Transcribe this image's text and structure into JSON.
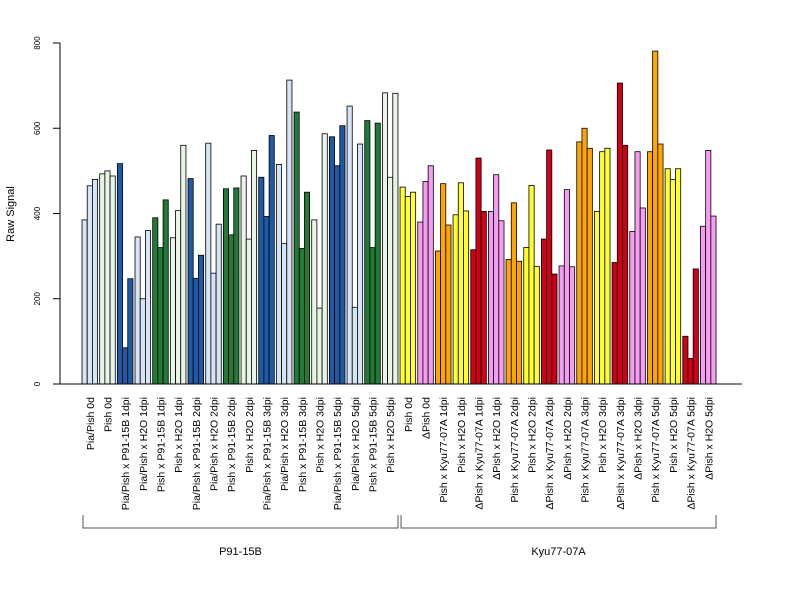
{
  "chart_data": {
    "type": "bar",
    "ylabel": "Raw Signal",
    "ylim": [
      0,
      800
    ],
    "yticks": [
      0,
      200,
      400,
      600,
      800
    ],
    "grid": false,
    "categories": [
      "Pia/Pish 0d",
      "Pish 0d",
      "Pia/Pish x P91-15B 1dpi",
      "Pia/Pish x H2O 1dpi",
      "Pish x P91-15B 1dpi",
      "Pish x H2O 1dpi",
      "Pia/Pish x P91-15B 2dpi",
      "Pia/Pish x H2O 2dpi",
      "Pish x P91-15B 2dpi",
      "Pish x H2O 2dpi",
      "Pia/Pish x P91-15B 3dpi",
      "Pia/Pish x H2O 3dpi",
      "Pish x P91-15B 3dpi",
      "Pish x H2O 3dpi",
      "Pia/Pish x P91-15B 5dpi",
      "Pia/Pish x H2O 5dpi",
      "Pish x P91-15B 5dpi",
      "Pish x H2O 5dpi",
      "Pish 0d",
      "ΔPish 0d",
      "Pish x Kyu77-07A 1dpi",
      "Pish x H2O 1dpi",
      "ΔPish x Kyu77-07A 1dpi",
      "ΔPish x H2O 1dpi",
      "Pish x Kyu77-07A 2dpi",
      "Pish x H2O 2dpi",
      "ΔPish x Kyu77-07A 2dpi",
      "ΔPish x H2O 2dpi",
      "Pish x Kyu77-07A 3dpi",
      "Pish x H2O 3dpi",
      "ΔPish x Kyu77-07A 3dpi",
      "ΔPish x H2O 3dpi",
      "Pish x Kyu77-07A 5dpi",
      "Pish x H2O 5dpi",
      "ΔPish x Kyu77-07A 5dpi",
      "ΔPish x H2O 5dpi"
    ],
    "groups": [
      {
        "colors": [
          "#d6e4f5"
        ],
        "values": [
          385,
          465,
          480
        ]
      },
      {
        "colors": [
          "#e8f5e6"
        ],
        "values": [
          493,
          500,
          488
        ]
      },
      {
        "colors": [
          "#1f5aa6"
        ],
        "values": [
          517,
          85,
          247
        ]
      },
      {
        "colors": [
          "#d6e4f5"
        ],
        "values": [
          345,
          200,
          360
        ]
      },
      {
        "colors": [
          "#237a37"
        ],
        "values": [
          390,
          320,
          432
        ]
      },
      {
        "colors": [
          "#e8f5e6"
        ],
        "values": [
          343,
          407,
          560
        ]
      },
      {
        "colors": [
          "#1f5aa6"
        ],
        "values": [
          482,
          248,
          302
        ]
      },
      {
        "colors": [
          "#d6e4f5"
        ],
        "values": [
          565,
          260,
          375
        ]
      },
      {
        "colors": [
          "#237a37"
        ],
        "values": [
          458,
          350,
          460
        ]
      },
      {
        "colors": [
          "#e8f5e6"
        ],
        "values": [
          488,
          340,
          548
        ]
      },
      {
        "colors": [
          "#1f5aa6"
        ],
        "values": [
          485,
          393,
          583
        ]
      },
      {
        "colors": [
          "#d6e4f5"
        ],
        "values": [
          515,
          330,
          713
        ]
      },
      {
        "colors": [
          "#237a37"
        ],
        "values": [
          638,
          318,
          450
        ]
      },
      {
        "colors": [
          "#e8f5e6"
        ],
        "values": [
          385,
          178,
          587
        ]
      },
      {
        "colors": [
          "#1f5aa6"
        ],
        "values": [
          580,
          512,
          606
        ]
      },
      {
        "colors": [
          "#d6e4f5"
        ],
        "values": [
          652,
          180,
          563
        ]
      },
      {
        "colors": [
          "#237a37"
        ],
        "values": [
          618,
          320,
          612
        ]
      },
      {
        "colors": [
          "#e8f5e6"
        ],
        "values": [
          683,
          485,
          682
        ]
      },
      {
        "colors": [
          "#ffff33"
        ],
        "values": [
          462,
          440,
          450
        ]
      },
      {
        "colors": [
          "#f59ef1"
        ],
        "values": [
          380,
          475,
          512
        ]
      },
      {
        "colors": [
          "#ffa500"
        ],
        "values": [
          312,
          470,
          373
        ]
      },
      {
        "colors": [
          "#ffff33"
        ],
        "values": [
          397,
          472,
          406
        ]
      },
      {
        "colors": [
          "#d10016"
        ],
        "values": [
          315,
          530,
          405
        ]
      },
      {
        "colors": [
          "#f59ef1"
        ],
        "values": [
          405,
          491,
          383
        ]
      },
      {
        "colors": [
          "#ffa500"
        ],
        "values": [
          292,
          425,
          288
        ]
      },
      {
        "colors": [
          "#ffff33"
        ],
        "values": [
          320,
          466,
          276
        ]
      },
      {
        "colors": [
          "#d10016"
        ],
        "values": [
          340,
          549,
          258
        ]
      },
      {
        "colors": [
          "#f59ef1"
        ],
        "values": [
          277,
          456,
          275
        ]
      },
      {
        "colors": [
          "#ffa500"
        ],
        "values": [
          568,
          600,
          553
        ]
      },
      {
        "colors": [
          "#ffff33"
        ],
        "values": [
          405,
          545,
          553
        ]
      },
      {
        "colors": [
          "#d10016"
        ],
        "values": [
          285,
          706,
          560
        ]
      },
      {
        "colors": [
          "#f59ef1"
        ],
        "values": [
          358,
          545,
          413
        ]
      },
      {
        "colors": [
          "#ffa500"
        ],
        "values": [
          545,
          781,
          563
        ]
      },
      {
        "colors": [
          "#ffff33"
        ],
        "values": [
          505,
          480,
          505
        ]
      },
      {
        "colors": [
          "#d10016"
        ],
        "values": [
          112,
          60,
          270
        ]
      },
      {
        "colors": [
          "#f59ef1"
        ],
        "values": [
          370,
          548,
          394
        ]
      }
    ],
    "brackets": [
      {
        "label": "P91-15B",
        "from": 0,
        "to": 17
      },
      {
        "label": "Kyu77-07A",
        "from": 18,
        "to": 35
      }
    ]
  }
}
